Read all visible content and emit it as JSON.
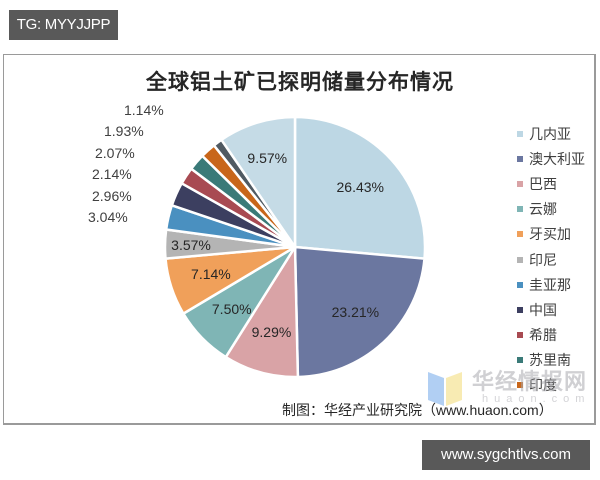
{
  "badges": {
    "top_left": "TG: MYYJJPP",
    "bottom_right": "www.sygchtlvs.com"
  },
  "chart": {
    "title": "全球铝土矿已探明储量分布情况",
    "source": "制图：华经产业研究院（www.huaon.com）",
    "watermark": {
      "name": "华经情报网",
      "sub": "huaon.com"
    }
  },
  "legend": [
    {
      "label": "几内亚",
      "color": "#bdd7e4"
    },
    {
      "label": "澳大利亚",
      "color": "#6b77a0"
    },
    {
      "label": "巴西",
      "color": "#d9a3a6"
    },
    {
      "label": "云娜",
      "color": "#7fb5b5"
    },
    {
      "label": "牙买加",
      "color": "#f0a05a"
    },
    {
      "label": "印尼",
      "color": "#b4b4b4"
    },
    {
      "label": "圭亚那",
      "color": "#4a90c0"
    },
    {
      "label": "中国",
      "color": "#3c3f60"
    },
    {
      "label": "希腊",
      "color": "#a84a52"
    },
    {
      "label": "苏里南",
      "color": "#3a7a78"
    },
    {
      "label": "印度",
      "color": "#c8661a"
    }
  ],
  "chart_data": {
    "type": "pie",
    "title": "全球铝土矿已探明储量分布情况",
    "start_angle": "12 o'clock, clockwise",
    "categories": [
      "几内亚",
      "澳大利亚",
      "巴西",
      "云娜",
      "牙买加",
      "印尼",
      "圭亚那",
      "中国",
      "希腊",
      "苏里南",
      "印度",
      "(unlabeled)",
      "(unlabeled)"
    ],
    "values": [
      26.43,
      23.21,
      9.29,
      7.5,
      7.14,
      3.57,
      3.04,
      2.96,
      2.14,
      2.07,
      1.93,
      1.14,
      9.57
    ],
    "labels": [
      "26.43%",
      "23.21%",
      "9.29%",
      "7.50%",
      "7.14%",
      "3.57%",
      "3.04%",
      "2.96%",
      "2.14%",
      "2.07%",
      "1.93%",
      "1.14%",
      "9.57%"
    ],
    "colors": [
      "#bdd7e4",
      "#6b77a0",
      "#d9a3a6",
      "#7fb5b5",
      "#f0a05a",
      "#b4b4b4",
      "#4a90c0",
      "#3c3f60",
      "#a84a52",
      "#3a7a78",
      "#c8661a",
      "#505a62",
      "#c5dbe6"
    ],
    "legend_position": "right",
    "source": "制图：华经产业研究院（www.huaon.com）"
  }
}
